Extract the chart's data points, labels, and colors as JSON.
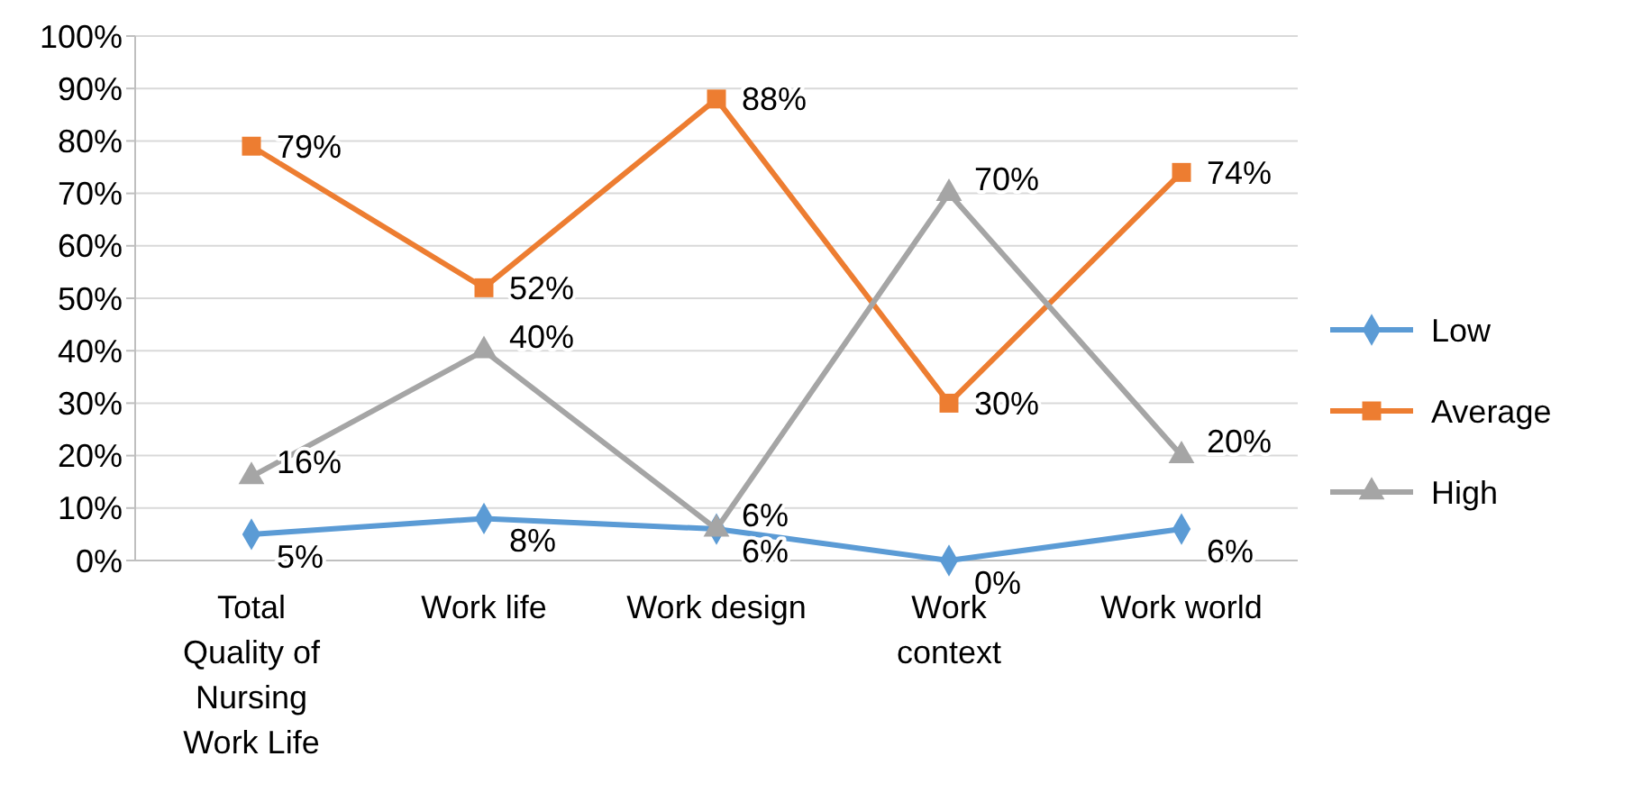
{
  "chart_data": {
    "type": "line",
    "categories": [
      "Total Quality of Nursing Work Life",
      "Work life",
      "Work design",
      "Work context",
      "Work world"
    ],
    "ylim": [
      0,
      100
    ],
    "yticks": [
      {
        "value": 0,
        "label": "0%"
      },
      {
        "value": 10,
        "label": "10%"
      },
      {
        "value": 20,
        "label": "20%"
      },
      {
        "value": 30,
        "label": "30%"
      },
      {
        "value": 40,
        "label": "40%"
      },
      {
        "value": 50,
        "label": "50%"
      },
      {
        "value": 60,
        "label": "60%"
      },
      {
        "value": 70,
        "label": "70%"
      },
      {
        "value": 80,
        "label": "80%"
      },
      {
        "value": 90,
        "label": "90%"
      },
      {
        "value": 100,
        "label": "100%"
      }
    ],
    "grid": "y",
    "legend": "right",
    "series": [
      {
        "name": "Low",
        "color": "#5b9bd5",
        "marker": "diamond",
        "values": [
          5,
          8,
          6,
          0,
          6
        ],
        "value_labels": [
          "5%",
          "8%",
          "6%",
          "0%",
          "6%"
        ]
      },
      {
        "name": "Average",
        "color": "#ed7d31",
        "marker": "square",
        "values": [
          79,
          52,
          88,
          30,
          74
        ],
        "value_labels": [
          "79%",
          "52%",
          "88%",
          "30%",
          "74%"
        ]
      },
      {
        "name": "High",
        "color": "#a5a5a5",
        "marker": "triangle",
        "values": [
          16,
          40,
          6,
          70,
          20
        ],
        "value_labels": [
          "16%",
          "40%",
          "6%",
          "70%",
          "20%"
        ]
      }
    ]
  }
}
